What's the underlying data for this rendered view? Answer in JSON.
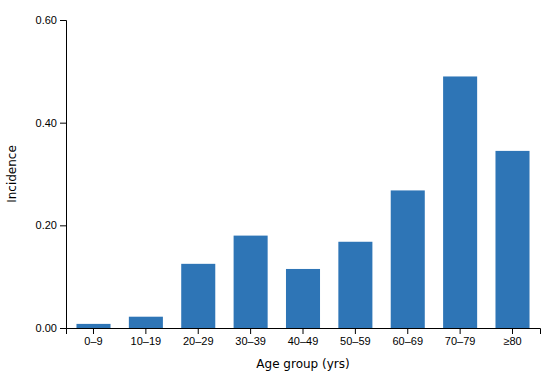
{
  "chart_data": {
    "type": "bar",
    "categories": [
      "0–9",
      "10–19",
      "20–29",
      "30–39",
      "40–49",
      "50–59",
      "60–69",
      "70–79",
      "≥80"
    ],
    "values": [
      0.008,
      0.022,
      0.125,
      0.18,
      0.115,
      0.168,
      0.268,
      0.49,
      0.345
    ],
    "color": "#2e75b6",
    "xlabel": "Age group (yrs)",
    "ylabel": "Incidence",
    "ylim": [
      0,
      0.6
    ],
    "yticks": [
      {
        "value": 0.0,
        "label": "0.00"
      },
      {
        "value": 0.2,
        "label": "0.20"
      },
      {
        "value": 0.4,
        "label": "0.40"
      },
      {
        "value": 0.6,
        "label": "0.60"
      }
    ],
    "grid": false
  }
}
